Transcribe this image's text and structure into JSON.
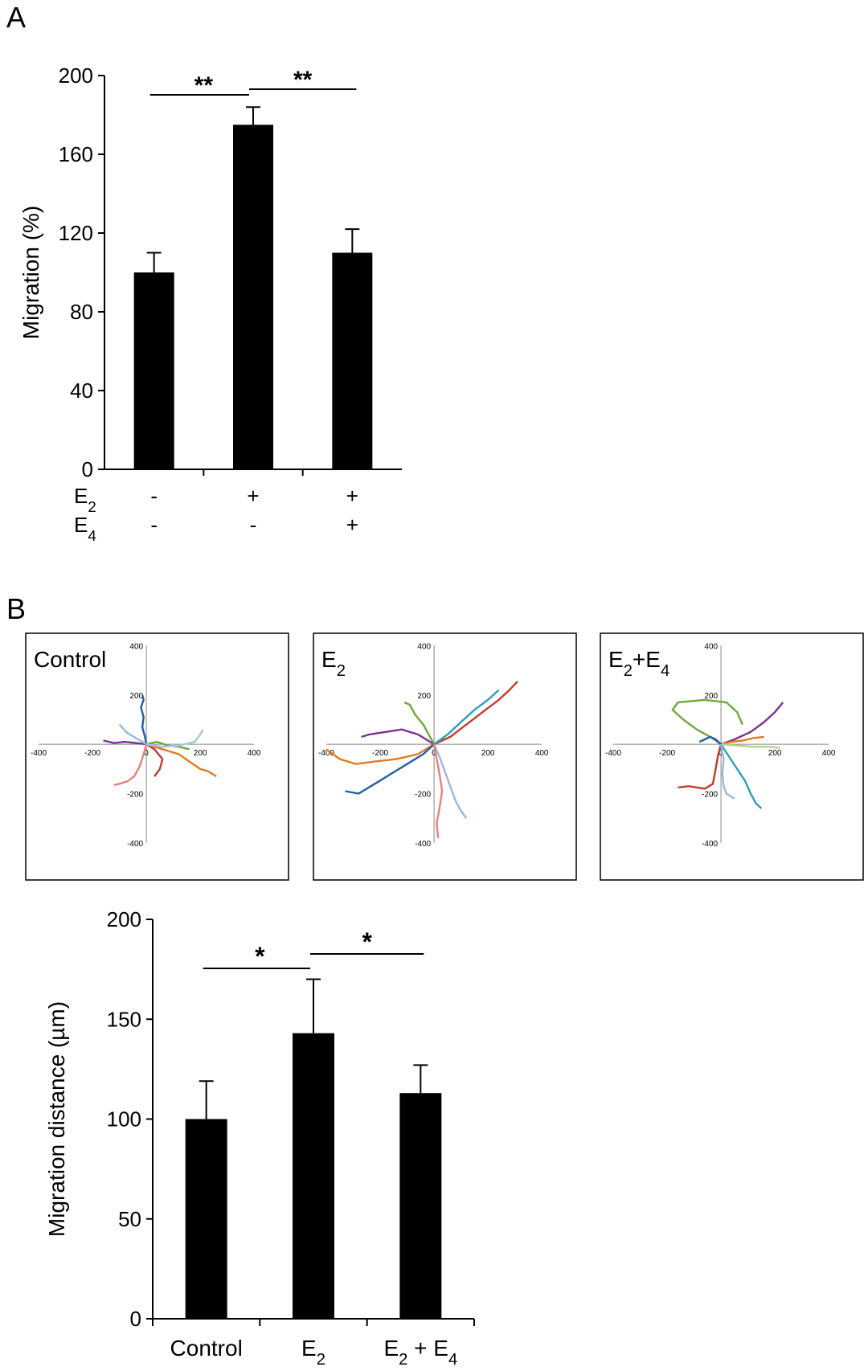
{
  "panels": {
    "a": "A",
    "b": "B"
  },
  "chart_data": [
    {
      "id": "panel-a-bar",
      "type": "bar",
      "ylabel": "Migration (%)",
      "ylim": [
        0,
        200
      ],
      "yticks": [
        0,
        40,
        80,
        120,
        160,
        200
      ],
      "values": [
        100,
        175,
        110
      ],
      "errors": [
        10,
        9,
        12
      ],
      "bar_color": "#000000",
      "condition_rows": [
        {
          "label_main": "E",
          "label_sub": "2",
          "marks": [
            "-",
            "+",
            "+"
          ]
        },
        {
          "label_main": "E",
          "label_sub": "4",
          "marks": [
            "-",
            "-",
            "+"
          ]
        }
      ],
      "significance": [
        {
          "from": 0,
          "to": 1,
          "label": "**"
        },
        {
          "from": 1,
          "to": 2,
          "label": "**"
        }
      ]
    },
    {
      "id": "panel-b-bar",
      "type": "bar",
      "ylabel": "Migration distance (µm)",
      "ylim": [
        0,
        200
      ],
      "yticks": [
        0,
        50,
        100,
        150,
        200
      ],
      "categories": [
        {
          "main": "Control",
          "parts": []
        },
        {
          "main": "E",
          "parts": [
            {
              "text": "2",
              "sub": true
            }
          ]
        },
        {
          "main": "E",
          "parts": [
            {
              "text": "2",
              "sub": true
            },
            {
              "text": " + E",
              "sub": false
            },
            {
              "text": "4",
              "sub": true
            }
          ]
        }
      ],
      "values": [
        100,
        143,
        113
      ],
      "errors": [
        19,
        27,
        14
      ],
      "bar_color": "#000000",
      "significance": [
        {
          "from": 0,
          "to": 1,
          "label": "*"
        },
        {
          "from": 1,
          "to": 2,
          "label": "*"
        }
      ]
    }
  ],
  "trajectory_plots": [
    {
      "title": {
        "main": "Control",
        "parts": []
      },
      "ticks": [
        -400,
        -200,
        0,
        200,
        400
      ],
      "tracks": [
        {
          "color": "#1f5fa8",
          "points": [
            [
              0,
              0
            ],
            [
              -5,
              30
            ],
            [
              -15,
              70
            ],
            [
              -10,
              110
            ],
            [
              -20,
              150
            ],
            [
              -10,
              180
            ],
            [
              -15,
              200
            ]
          ]
        },
        {
          "color": "#7b3294",
          "points": [
            [
              0,
              0
            ],
            [
              -40,
              5
            ],
            [
              -80,
              10
            ],
            [
              -120,
              5
            ],
            [
              -160,
              15
            ]
          ]
        },
        {
          "color": "#9ab8e0",
          "points": [
            [
              0,
              0
            ],
            [
              -30,
              20
            ],
            [
              -70,
              45
            ],
            [
              -100,
              80
            ]
          ]
        },
        {
          "color": "#e8807a",
          "points": [
            [
              0,
              0
            ],
            [
              -10,
              -40
            ],
            [
              -25,
              -90
            ],
            [
              -45,
              -130
            ],
            [
              -70,
              -150
            ],
            [
              -100,
              -160
            ],
            [
              -120,
              -165
            ]
          ]
        },
        {
          "color": "#c43a2e",
          "points": [
            [
              0,
              0
            ],
            [
              30,
              -20
            ],
            [
              60,
              -60
            ],
            [
              50,
              -100
            ],
            [
              30,
              -130
            ]
          ]
        },
        {
          "color": "#e07b20",
          "points": [
            [
              0,
              0
            ],
            [
              60,
              -20
            ],
            [
              120,
              -40
            ],
            [
              160,
              -70
            ],
            [
              200,
              -100
            ],
            [
              230,
              -110
            ],
            [
              260,
              -130
            ]
          ]
        },
        {
          "color": "#70a83a",
          "points": [
            [
              0,
              0
            ],
            [
              40,
              10
            ],
            [
              80,
              -5
            ],
            [
              120,
              -10
            ],
            [
              160,
              -20
            ]
          ]
        },
        {
          "color": "#a8c3e8",
          "points": [
            [
              0,
              0
            ],
            [
              60,
              -10
            ],
            [
              120,
              -5
            ],
            [
              180,
              10
            ],
            [
              200,
              40
            ],
            [
              210,
              60
            ]
          ]
        }
      ]
    },
    {
      "title": {
        "main": "E",
        "parts": [
          {
            "text": "2",
            "sub": true
          }
        ]
      },
      "ticks": [
        -400,
        -200,
        0,
        200,
        400
      ],
      "tracks": [
        {
          "color": "#c43a2e",
          "points": [
            [
              0,
              0
            ],
            [
              60,
              30
            ],
            [
              120,
              80
            ],
            [
              180,
              130
            ],
            [
              240,
              180
            ],
            [
              280,
              220
            ],
            [
              310,
              255
            ]
          ]
        },
        {
          "color": "#2aa0b8",
          "points": [
            [
              0,
              0
            ],
            [
              50,
              40
            ],
            [
              100,
              90
            ],
            [
              150,
              140
            ],
            [
              200,
              180
            ],
            [
              240,
              220
            ]
          ]
        },
        {
          "color": "#7b3294",
          "points": [
            [
              0,
              0
            ],
            [
              -60,
              40
            ],
            [
              -120,
              60
            ],
            [
              -180,
              50
            ],
            [
              -240,
              40
            ],
            [
              -270,
              30
            ]
          ]
        },
        {
          "color": "#70a83a",
          "points": [
            [
              0,
              0
            ],
            [
              -20,
              40
            ],
            [
              -40,
              80
            ],
            [
              -70,
              120
            ],
            [
              -90,
              160
            ],
            [
              -110,
              170
            ]
          ]
        },
        {
          "color": "#e07b20",
          "points": [
            [
              0,
              0
            ],
            [
              -60,
              -40
            ],
            [
              -140,
              -60
            ],
            [
              -220,
              -70
            ],
            [
              -290,
              -80
            ],
            [
              -350,
              -60
            ],
            [
              -400,
              -20
            ]
          ]
        },
        {
          "color": "#1f5fa8",
          "points": [
            [
              0,
              0
            ],
            [
              -40,
              -40
            ],
            [
              -100,
              -80
            ],
            [
              -160,
              -120
            ],
            [
              -220,
              -160
            ],
            [
              -280,
              -200
            ],
            [
              -330,
              -190
            ]
          ]
        },
        {
          "color": "#9ab8e0",
          "points": [
            [
              0,
              0
            ],
            [
              20,
              -50
            ],
            [
              40,
              -110
            ],
            [
              60,
              -170
            ],
            [
              80,
              -230
            ],
            [
              100,
              -270
            ],
            [
              120,
              -300
            ]
          ]
        },
        {
          "color": "#e8807a",
          "points": [
            [
              0,
              0
            ],
            [
              10,
              -60
            ],
            [
              20,
              -120
            ],
            [
              30,
              -190
            ],
            [
              20,
              -260
            ],
            [
              10,
              -320
            ],
            [
              15,
              -380
            ]
          ]
        }
      ]
    },
    {
      "title": {
        "main": "E",
        "parts": [
          {
            "text": "2",
            "sub": true
          },
          {
            "text": "+E",
            "sub": false
          },
          {
            "text": "4",
            "sub": true
          }
        ]
      },
      "ticks": [
        -400,
        -200,
        0,
        200,
        400
      ],
      "tracks": [
        {
          "color": "#70a83a",
          "points": [
            [
              0,
              0
            ],
            [
              -40,
              30
            ],
            [
              -90,
              60
            ],
            [
              -140,
              100
            ],
            [
              -180,
              140
            ],
            [
              -160,
              170
            ],
            [
              -60,
              180
            ],
            [
              20,
              170
            ],
            [
              60,
              130
            ],
            [
              80,
              80
            ]
          ]
        },
        {
          "color": "#7b3294",
          "points": [
            [
              0,
              0
            ],
            [
              50,
              20
            ],
            [
              110,
              50
            ],
            [
              160,
              90
            ],
            [
              200,
              130
            ],
            [
              230,
              170
            ]
          ]
        },
        {
          "color": "#e07b20",
          "points": [
            [
              0,
              0
            ],
            [
              40,
              10
            ],
            [
              80,
              15
            ],
            [
              120,
              25
            ],
            [
              160,
              30
            ]
          ]
        },
        {
          "color": "#b5d38a",
          "points": [
            [
              0,
              0
            ],
            [
              60,
              -5
            ],
            [
              120,
              -10
            ],
            [
              180,
              -10
            ],
            [
              220,
              -15
            ]
          ]
        },
        {
          "color": "#1f5fa8",
          "points": [
            [
              0,
              0
            ],
            [
              -20,
              20
            ],
            [
              -40,
              30
            ],
            [
              -60,
              20
            ],
            [
              -80,
              10
            ]
          ]
        },
        {
          "color": "#c43a2e",
          "points": [
            [
              0,
              0
            ],
            [
              -10,
              -40
            ],
            [
              -20,
              -100
            ],
            [
              -30,
              -160
            ],
            [
              -60,
              -180
            ],
            [
              -120,
              -170
            ],
            [
              -160,
              -175
            ]
          ]
        },
        {
          "color": "#2aa0b8",
          "points": [
            [
              0,
              0
            ],
            [
              30,
              -50
            ],
            [
              60,
              -100
            ],
            [
              90,
              -150
            ],
            [
              110,
              -200
            ],
            [
              130,
              -240
            ],
            [
              150,
              -260
            ]
          ]
        },
        {
          "color": "#9ab8e0",
          "points": [
            [
              0,
              0
            ],
            [
              10,
              -60
            ],
            [
              5,
              -120
            ],
            [
              10,
              -170
            ],
            [
              20,
              -200
            ],
            [
              50,
              -220
            ]
          ]
        }
      ]
    }
  ]
}
